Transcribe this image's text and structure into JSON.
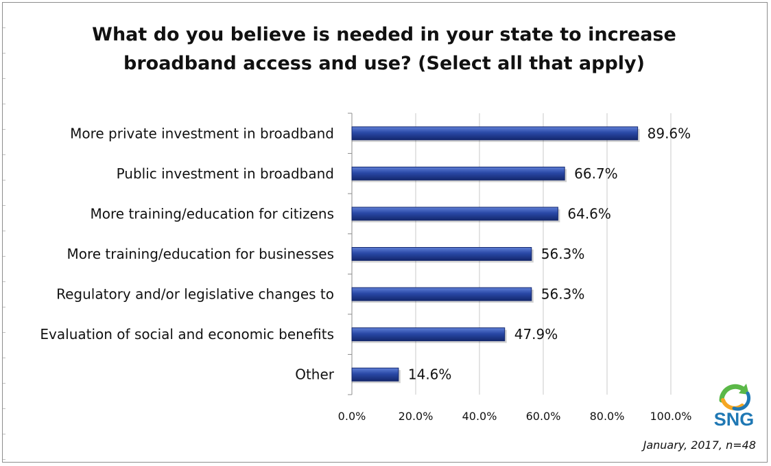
{
  "title_line1": "What do you believe is needed in your state to increase",
  "title_line2": "broadband access and use? (Select all that apply)",
  "footnote": "January, 2017, n=48",
  "logo_text": "SNG",
  "colors": {
    "bar": "#2948a6",
    "bar_dark": "#14286e",
    "bar_light": "#5f7fd6",
    "grid": "#c8c8c8",
    "logo_green": "#5bb848",
    "logo_blue": "#1f78b4",
    "logo_orange": "#f5a623"
  },
  "chart_data": {
    "type": "bar",
    "orientation": "horizontal",
    "title": "What do you believe is needed in your state to increase broadband access and use? (Select all that apply)",
    "categories": [
      "More private investment in broadband",
      "Public investment in broadband",
      "More training/education for citizens",
      "More training/education for businesses",
      "Regulatory and/or legislative changes to",
      "Evaluation of social and economic benefits",
      "Other"
    ],
    "values": [
      89.6,
      66.7,
      64.6,
      56.3,
      56.3,
      47.9,
      14.6
    ],
    "value_labels": [
      "89.6%",
      "66.7%",
      "64.6%",
      "56.3%",
      "56.3%",
      "47.9%",
      "14.6%"
    ],
    "xlim": [
      0,
      100
    ],
    "xticks": [
      0,
      20,
      40,
      60,
      80,
      100
    ],
    "xtick_labels": [
      "0.0%",
      "20.0%",
      "40.0%",
      "60.0%",
      "80.0%",
      "100.0%"
    ],
    "grid": true,
    "legend": "none"
  }
}
